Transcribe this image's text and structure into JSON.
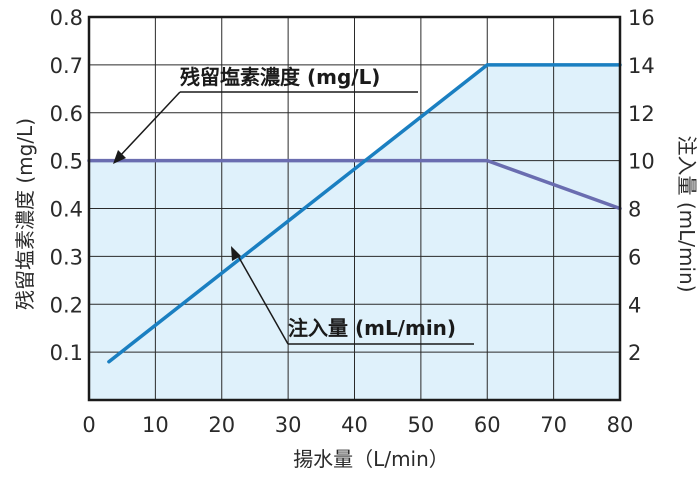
{
  "chart_data": {
    "type": "line",
    "title": "",
    "xlabel": "揚水量（L/min）",
    "ylabel_left": "残留塩素濃度 (mg/L)",
    "ylabel_right": "注入量 (mL/min)",
    "xlim": [
      0,
      80
    ],
    "ylim_left": [
      0,
      0.8
    ],
    "ylim_right": [
      0,
      16
    ],
    "x_ticks": [
      "0",
      "10",
      "20",
      "30",
      "40",
      "50",
      "60",
      "70",
      "80"
    ],
    "y_left_ticks": [
      "0.1",
      "0.2",
      "0.3",
      "0.4",
      "0.5",
      "0.6",
      "0.7",
      "0.8"
    ],
    "y_right_ticks": [
      "2",
      "4",
      "6",
      "8",
      "10",
      "12",
      "14",
      "16"
    ],
    "grid": true,
    "series": [
      {
        "name": "残留塩素濃度 (mg/L)",
        "axis": "left",
        "color": "#6a6db0",
        "points": [
          [
            0,
            0.5
          ],
          [
            60,
            0.5
          ],
          [
            80,
            0.4
          ]
        ]
      },
      {
        "name": "注入量 (mL/min)",
        "axis": "right",
        "color": "#1a7fc1",
        "fill": "#dff1fb",
        "points": [
          [
            3,
            1.6
          ],
          [
            60,
            14
          ],
          [
            80,
            14
          ]
        ]
      }
    ]
  }
}
